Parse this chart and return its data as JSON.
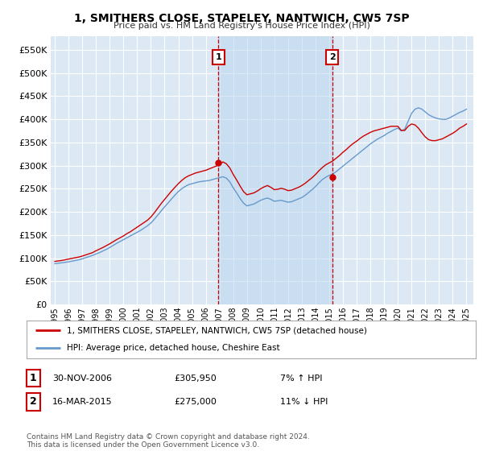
{
  "title": "1, SMITHERS CLOSE, STAPELEY, NANTWICH, CW5 7SP",
  "subtitle": "Price paid vs. HM Land Registry's House Price Index (HPI)",
  "ytick_values": [
    0,
    50000,
    100000,
    150000,
    200000,
    250000,
    300000,
    350000,
    400000,
    450000,
    500000,
    550000
  ],
  "ylim": [
    0,
    580000
  ],
  "xlim_start": 1994.7,
  "xlim_end": 2025.5,
  "plot_bg_color": "#dce9f5",
  "grid_color": "#ffffff",
  "shade_color": "#b8d4ee",
  "legend_label_red": "1, SMITHERS CLOSE, STAPELEY, NANTWICH, CW5 7SP (detached house)",
  "legend_label_blue": "HPI: Average price, detached house, Cheshire East",
  "marker1_year": 2006.92,
  "marker1_value": 305950,
  "marker1_label": "1",
  "marker1_date": "30-NOV-2006",
  "marker1_price": "£305,950",
  "marker1_hpi": "7% ↑ HPI",
  "marker2_year": 2015.21,
  "marker2_value": 275000,
  "marker2_label": "2",
  "marker2_date": "16-MAR-2015",
  "marker2_price": "£275,000",
  "marker2_hpi": "11% ↓ HPI",
  "footer": "Contains HM Land Registry data © Crown copyright and database right 2024.\nThis data is licensed under the Open Government Licence v3.0.",
  "red_color": "#cc0000",
  "blue_color": "#6699cc",
  "hpi_x": [
    1995.0,
    1995.25,
    1995.5,
    1995.75,
    1996.0,
    1996.25,
    1996.5,
    1996.75,
    1997.0,
    1997.25,
    1997.5,
    1997.75,
    1998.0,
    1998.25,
    1998.5,
    1998.75,
    1999.0,
    1999.25,
    1999.5,
    1999.75,
    2000.0,
    2000.25,
    2000.5,
    2000.75,
    2001.0,
    2001.25,
    2001.5,
    2001.75,
    2002.0,
    2002.25,
    2002.5,
    2002.75,
    2003.0,
    2003.25,
    2003.5,
    2003.75,
    2004.0,
    2004.25,
    2004.5,
    2004.75,
    2005.0,
    2005.25,
    2005.5,
    2005.75,
    2006.0,
    2006.25,
    2006.5,
    2006.75,
    2007.0,
    2007.25,
    2007.5,
    2007.75,
    2008.0,
    2008.25,
    2008.5,
    2008.75,
    2009.0,
    2009.25,
    2009.5,
    2009.75,
    2010.0,
    2010.25,
    2010.5,
    2010.75,
    2011.0,
    2011.25,
    2011.5,
    2011.75,
    2012.0,
    2012.25,
    2012.5,
    2012.75,
    2013.0,
    2013.25,
    2013.5,
    2013.75,
    2014.0,
    2014.25,
    2014.5,
    2014.75,
    2015.0,
    2015.25,
    2015.5,
    2015.75,
    2016.0,
    2016.25,
    2016.5,
    2016.75,
    2017.0,
    2017.25,
    2017.5,
    2017.75,
    2018.0,
    2018.25,
    2018.5,
    2018.75,
    2019.0,
    2019.25,
    2019.5,
    2019.75,
    2020.0,
    2020.25,
    2020.5,
    2020.75,
    2021.0,
    2021.25,
    2021.5,
    2021.75,
    2022.0,
    2022.25,
    2022.5,
    2022.75,
    2023.0,
    2023.25,
    2023.5,
    2023.75,
    2024.0,
    2024.25,
    2024.5,
    2024.75,
    2025.0
  ],
  "hpi_y": [
    88000,
    89000,
    90000,
    91000,
    92000,
    93500,
    95000,
    96500,
    98500,
    101000,
    103500,
    106000,
    109000,
    112000,
    115500,
    119000,
    123000,
    127500,
    132000,
    136000,
    140000,
    144000,
    148000,
    152000,
    156000,
    160000,
    165000,
    170000,
    176000,
    184000,
    193000,
    202000,
    211000,
    219000,
    228000,
    236000,
    244000,
    250000,
    255000,
    259000,
    261000,
    263000,
    265000,
    266000,
    267000,
    268000,
    270000,
    272000,
    274000,
    276000,
    273000,
    265000,
    252000,
    241000,
    229000,
    219000,
    213000,
    215000,
    217000,
    221000,
    225000,
    228000,
    230000,
    227000,
    223000,
    224000,
    225000,
    223000,
    221000,
    222000,
    225000,
    228000,
    231000,
    236000,
    242000,
    248000,
    255000,
    263000,
    270000,
    275000,
    279000,
    282000,
    287000,
    293000,
    299000,
    305000,
    311000,
    317000,
    323000,
    329000,
    335000,
    341000,
    347000,
    352000,
    357000,
    361000,
    365000,
    370000,
    374000,
    378000,
    381000,
    375000,
    379000,
    396000,
    413000,
    422000,
    425000,
    422000,
    416000,
    410000,
    406000,
    403000,
    401000,
    400000,
    400000,
    403000,
    407000,
    411000,
    415000,
    418000,
    422000
  ],
  "red_x": [
    1995.0,
    1995.25,
    1995.5,
    1995.75,
    1996.0,
    1996.25,
    1996.5,
    1996.75,
    1997.0,
    1997.25,
    1997.5,
    1997.75,
    1998.0,
    1998.25,
    1998.5,
    1998.75,
    1999.0,
    1999.25,
    1999.5,
    1999.75,
    2000.0,
    2000.25,
    2000.5,
    2000.75,
    2001.0,
    2001.25,
    2001.5,
    2001.75,
    2002.0,
    2002.25,
    2002.5,
    2002.75,
    2003.0,
    2003.25,
    2003.5,
    2003.75,
    2004.0,
    2004.25,
    2004.5,
    2004.75,
    2005.0,
    2005.25,
    2005.5,
    2005.75,
    2006.0,
    2006.25,
    2006.5,
    2006.75,
    2007.0,
    2007.25,
    2007.5,
    2007.75,
    2008.0,
    2008.25,
    2008.5,
    2008.75,
    2009.0,
    2009.25,
    2009.5,
    2009.75,
    2010.0,
    2010.25,
    2010.5,
    2010.75,
    2011.0,
    2011.25,
    2011.5,
    2011.75,
    2012.0,
    2012.25,
    2012.5,
    2012.75,
    2013.0,
    2013.25,
    2013.5,
    2013.75,
    2014.0,
    2014.25,
    2014.5,
    2014.75,
    2015.0,
    2015.25,
    2015.5,
    2015.75,
    2016.0,
    2016.25,
    2016.5,
    2016.75,
    2017.0,
    2017.25,
    2017.5,
    2017.75,
    2018.0,
    2018.25,
    2018.5,
    2018.75,
    2019.0,
    2019.25,
    2019.5,
    2019.75,
    2020.0,
    2020.25,
    2020.5,
    2020.75,
    2021.0,
    2021.25,
    2021.5,
    2021.75,
    2022.0,
    2022.25,
    2022.5,
    2022.75,
    2023.0,
    2023.25,
    2023.5,
    2023.75,
    2024.0,
    2024.25,
    2024.5,
    2024.75,
    2025.0
  ],
  "red_y": [
    93000,
    94000,
    95000,
    96500,
    98000,
    99500,
    101000,
    102500,
    104500,
    107000,
    109500,
    112000,
    116000,
    119500,
    123000,
    127000,
    131000,
    135500,
    140000,
    144000,
    148000,
    153000,
    157000,
    162000,
    167000,
    172000,
    177000,
    182000,
    189000,
    198000,
    208000,
    218000,
    227000,
    236000,
    245000,
    253000,
    261000,
    268000,
    274000,
    278000,
    281000,
    284000,
    286000,
    288000,
    290000,
    293000,
    296000,
    299000,
    302000,
    308000,
    304000,
    295000,
    281000,
    269000,
    256000,
    244000,
    237000,
    239000,
    241000,
    245000,
    250000,
    254000,
    257000,
    253000,
    248000,
    249000,
    251000,
    249000,
    246000,
    247000,
    250000,
    253000,
    257000,
    262000,
    268000,
    274000,
    281000,
    289000,
    296000,
    302000,
    306000,
    310000,
    316000,
    322000,
    329000,
    335000,
    342000,
    348000,
    353000,
    359000,
    364000,
    368000,
    372000,
    375000,
    377000,
    379000,
    381000,
    383000,
    385000,
    385000,
    385000,
    376000,
    376000,
    385000,
    390000,
    388000,
    381000,
    371000,
    362000,
    356000,
    354000,
    354000,
    356000,
    358000,
    362000,
    366000,
    370000,
    375000,
    381000,
    385000,
    390000
  ]
}
